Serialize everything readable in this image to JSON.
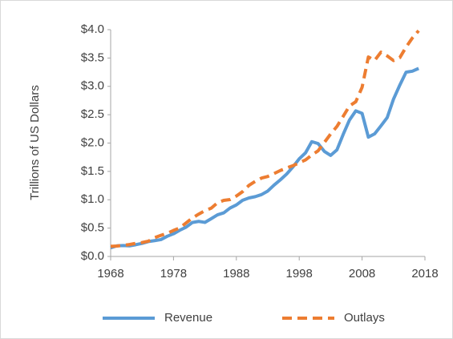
{
  "chart_data": {
    "type": "line",
    "y_label": "Trillions of US Dollars",
    "x": [
      1968,
      1969,
      1970,
      1971,
      1972,
      1973,
      1974,
      1975,
      1976,
      1977,
      1978,
      1979,
      1980,
      1981,
      1982,
      1983,
      1984,
      1985,
      1986,
      1987,
      1988,
      1989,
      1990,
      1991,
      1992,
      1993,
      1994,
      1995,
      1996,
      1997,
      1998,
      1999,
      2000,
      2001,
      2002,
      2003,
      2004,
      2005,
      2006,
      2007,
      2008,
      2009,
      2010,
      2011,
      2012,
      2013,
      2014,
      2015,
      2016,
      2017
    ],
    "series": [
      {
        "name": "Revenue",
        "color": "#5b9bd5",
        "dashed": false,
        "values": [
          0.153,
          0.187,
          0.193,
          0.187,
          0.207,
          0.231,
          0.263,
          0.279,
          0.298,
          0.356,
          0.4,
          0.463,
          0.517,
          0.599,
          0.618,
          0.601,
          0.666,
          0.734,
          0.769,
          0.854,
          0.909,
          0.991,
          1.032,
          1.055,
          1.091,
          1.154,
          1.259,
          1.352,
          1.453,
          1.579,
          1.722,
          1.827,
          2.025,
          1.991,
          1.853,
          1.782,
          1.88,
          2.154,
          2.407,
          2.568,
          2.524,
          2.105,
          2.163,
          2.303,
          2.45,
          2.775,
          3.022,
          3.25,
          3.268,
          3.316
        ]
      },
      {
        "name": "Outlays",
        "color": "#ed7d31",
        "dashed": true,
        "values": [
          0.178,
          0.184,
          0.196,
          0.21,
          0.231,
          0.246,
          0.269,
          0.332,
          0.372,
          0.409,
          0.459,
          0.504,
          0.591,
          0.678,
          0.746,
          0.808,
          0.852,
          0.946,
          0.99,
          1.004,
          1.065,
          1.144,
          1.253,
          1.324,
          1.382,
          1.41,
          1.462,
          1.516,
          1.561,
          1.601,
          1.652,
          1.702,
          1.789,
          1.863,
          2.011,
          2.16,
          2.293,
          2.472,
          2.655,
          2.729,
          2.983,
          3.518,
          3.457,
          3.603,
          3.537,
          3.455,
          3.506,
          3.692,
          3.853,
          3.982
        ]
      }
    ],
    "xlim": [
      1968,
      2018
    ],
    "xticks": [
      1968,
      1978,
      1988,
      1998,
      2008,
      2018
    ],
    "ylim": [
      0,
      4
    ],
    "yticks": [
      {
        "value": 0,
        "label": "$0.0"
      },
      {
        "value": 0.5,
        "label": "$0.5"
      },
      {
        "value": 1,
        "label": "$1.0"
      },
      {
        "value": 1.5,
        "label": "$1.5"
      },
      {
        "value": 2,
        "label": "$2.0"
      },
      {
        "value": 2.5,
        "label": "$2.5"
      },
      {
        "value": 3,
        "label": "$3.0"
      },
      {
        "value": 3.5,
        "label": "$3.5"
      },
      {
        "value": 4,
        "label": "$4.0"
      }
    ],
    "grid": false,
    "legend": "bottom"
  }
}
